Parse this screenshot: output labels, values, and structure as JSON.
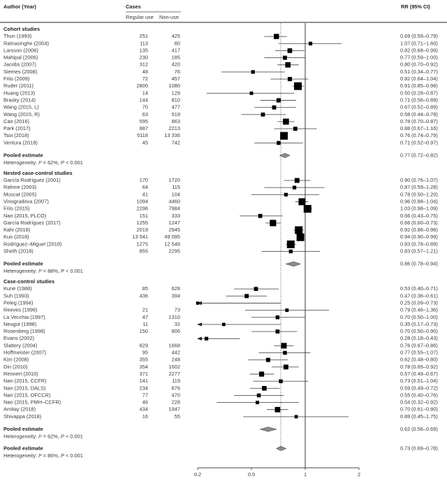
{
  "header": {
    "author_col": "Author (Year)",
    "cases_col": "Cases",
    "regular_col": "Regular use",
    "nonuse_col": "Non-use",
    "rr_col": "RR (95% CI)"
  },
  "chart_data": {
    "type": "forest",
    "x_scale": "log",
    "x_tick_labels": [
      "0.2",
      "0.5",
      "1",
      "2"
    ],
    "reference_line": 1,
    "pooled_reference_line": 0.73,
    "colors": {
      "square": "#000000",
      "ci_line": "#555555",
      "diamond": "#8c8c8c",
      "text": "#3a3a3a"
    },
    "sections": [
      {
        "title": "Cohort studies",
        "studies": [
          {
            "author": "Thun (1993)",
            "regular": "251",
            "nonuse": "425",
            "rr": 0.69,
            "lo": 0.59,
            "hi": 0.79
          },
          {
            "author": "Ratnasinghe (2004)",
            "regular": "113",
            "nonuse": "80",
            "rr": 1.07,
            "lo": 0.71,
            "hi": 1.6
          },
          {
            "author": "Larsson (2006)",
            "regular": "135",
            "nonuse": "417",
            "rr": 0.82,
            "lo": 0.68,
            "hi": 0.99
          },
          {
            "author": "Mahipal (2006)",
            "regular": "230",
            "nonuse": "185",
            "rr": 0.77,
            "lo": 0.59,
            "hi": 1.0
          },
          {
            "author": "Jacobs (2007)",
            "regular": "312",
            "nonuse": "420",
            "rr": 0.8,
            "lo": 0.7,
            "hi": 0.92
          },
          {
            "author": "Siemes (2008)",
            "regular": "48",
            "nonuse": "76",
            "rr": 0.51,
            "lo": 0.34,
            "hi": 0.77
          },
          {
            "author": "Friis (2009)",
            "regular": "72",
            "nonuse": "457",
            "rr": 0.82,
            "lo": 0.64,
            "hi": 1.04
          },
          {
            "author": "Ruder (2011)",
            "regular": "2800",
            "nonuse": "1080",
            "rr": 0.91,
            "lo": 0.85,
            "hi": 0.98
          },
          {
            "author": "Huang (2013)",
            "regular": "14",
            "nonuse": "129",
            "rr": 0.5,
            "lo": 0.28,
            "hi": 0.87
          },
          {
            "author": "Brasky (2014)",
            "regular": "144",
            "nonuse": "810",
            "rr": 0.71,
            "lo": 0.56,
            "hi": 0.89
          },
          {
            "author": "Wang (2015, L)",
            "regular": "70",
            "nonuse": "477",
            "rr": 0.67,
            "lo": 0.52,
            "hi": 0.89
          },
          {
            "author": "Wang (2015, R)",
            "regular": "63",
            "nonuse": "519",
            "rr": 0.58,
            "lo": 0.44,
            "hi": 0.78
          },
          {
            "author": "Cao (2016)",
            "regular": "595",
            "nonuse": "863",
            "rr": 0.78,
            "lo": 0.7,
            "hi": 0.87
          },
          {
            "author": "Park (2017)",
            "regular": "887",
            "nonuse": "2213",
            "rr": 0.88,
            "lo": 0.67,
            "hi": 1.16
          },
          {
            "author": "Tsoi (2018)",
            "regular": "5118",
            "nonuse": "13 336",
            "rr": 0.76,
            "lo": 0.74,
            "hi": 0.79
          },
          {
            "author": "Ventura (2018)",
            "regular": "45",
            "nonuse": "742",
            "rr": 0.71,
            "lo": 0.52,
            "hi": 0.97
          }
        ],
        "pooled": {
          "label": "Pooled estimate",
          "heterogeneity": "Heterogeneity: I² = 62%, P < 0.001",
          "rr": 0.77,
          "lo": 0.72,
          "hi": 0.82
        }
      },
      {
        "title": "Nested case-control studies",
        "studies": [
          {
            "author": "García Rodríguez (2001)",
            "regular": "170",
            "nonuse": "1720",
            "rr": 0.9,
            "lo": 0.76,
            "hi": 1.07
          },
          {
            "author": "Rahme (2003)",
            "regular": "64",
            "nonuse": "115",
            "rr": 0.87,
            "lo": 0.59,
            "hi": 1.28
          },
          {
            "author": "Muscat (2005)",
            "regular": "41",
            "nonuse": "104",
            "rr": 0.78,
            "lo": 0.5,
            "hi": 1.2
          },
          {
            "author": "Vinogradova (2007)",
            "regular": "1094",
            "nonuse": "4460",
            "rr": 0.96,
            "lo": 0.88,
            "hi": 1.04
          },
          {
            "author": "Friis (2015)",
            "regular": "2296",
            "nonuse": "7984",
            "rr": 1.03,
            "lo": 0.98,
            "hi": 1.09
          },
          {
            "author": "Nan (2015, PLCO)",
            "regular": "151",
            "nonuse": "333",
            "rr": 0.56,
            "lo": 0.43,
            "hi": 0.75
          },
          {
            "author": "García Rodríguez (2017)",
            "regular": "1255",
            "nonuse": "1247",
            "rr": 0.66,
            "lo": 0.6,
            "hi": 0.73
          },
          {
            "author": "Kahi (2018)",
            "regular": "2019",
            "nonuse": "2945",
            "rr": 0.92,
            "lo": 0.86,
            "hi": 0.98
          },
          {
            "author": "Kuo (2018)",
            "regular": "13 541",
            "nonuse": "49 095",
            "rr": 0.94,
            "lo": 0.9,
            "hi": 0.99
          },
          {
            "author": "Rodríguez–Miguel (2018)",
            "regular": "1275",
            "nonuse": "12 548",
            "rr": 0.83,
            "lo": 0.78,
            "hi": 0.89
          },
          {
            "author": "Sheth (2018)",
            "regular": "855",
            "nonuse": "2295",
            "rr": 0.83,
            "lo": 0.57,
            "hi": 1.21
          }
        ],
        "pooled": {
          "label": "Pooled estimate",
          "heterogeneity": "Heterogeneity: I² = 88%, P < 0.001",
          "rr": 0.86,
          "lo": 0.78,
          "hi": 0.94
        }
      },
      {
        "title": "Case-control studies",
        "studies": [
          {
            "author": "Kune (1988)",
            "regular": "85",
            "nonuse": "628",
            "rr": 0.53,
            "lo": 0.4,
            "hi": 0.71
          },
          {
            "author": "Suh (1993)",
            "regular": "436",
            "nonuse": "394",
            "rr": 0.47,
            "lo": 0.36,
            "hi": 0.61
          },
          {
            "author": "Peleg (1994)",
            "regular": "",
            "nonuse": "",
            "rr": 0.25,
            "lo": 0.09,
            "hi": 0.73
          },
          {
            "author": "Reeves (1996)",
            "regular": "21",
            "nonuse": "73",
            "rr": 0.79,
            "lo": 0.46,
            "hi": 1.36
          },
          {
            "author": "La Vecchia (1997)",
            "regular": "47",
            "nonuse": "1310",
            "rr": 0.7,
            "lo": 0.5,
            "hi": 1.0
          },
          {
            "author": "Neugut (1998)",
            "regular": "11",
            "nonuse": "32",
            "rr": 0.35,
            "lo": 0.17,
            "hi": 0.73
          },
          {
            "author": "Rosenberg (1998)",
            "regular": "150",
            "nonuse": "806",
            "rr": 0.7,
            "lo": 0.5,
            "hi": 0.9
          },
          {
            "author": "Evans (2002)",
            "regular": "",
            "nonuse": "",
            "rr": 0.28,
            "lo": 0.18,
            "hi": 0.43
          },
          {
            "author": "Slattery (2004)",
            "regular": "629",
            "nonuse": "1668",
            "rr": 0.76,
            "lo": 0.67,
            "hi": 0.86
          },
          {
            "author": "Hoffmeister (2007)",
            "regular": "95",
            "nonuse": "442",
            "rr": 0.77,
            "lo": 0.55,
            "hi": 1.07
          },
          {
            "author": "Kim (2008)",
            "regular": "355",
            "nonuse": "248",
            "rr": 0.62,
            "lo": 0.48,
            "hi": 0.8
          },
          {
            "author": "Din (2010)",
            "regular": "354",
            "nonuse": "1602",
            "rr": 0.78,
            "lo": 0.65,
            "hi": 0.92
          },
          {
            "author": "Rennert (2010)",
            "regular": "371",
            "nonuse": "2277",
            "rr": 0.57,
            "lo": 0.49,
            "hi": 0.67
          },
          {
            "author": "Nan (2015, CCFR)",
            "regular": "141",
            "nonuse": "119",
            "rr": 0.73,
            "lo": 0.51,
            "hi": 1.04
          },
          {
            "author": "Nan (2015, DALS)",
            "regular": "234",
            "nonuse": "876",
            "rr": 0.59,
            "lo": 0.49,
            "hi": 0.72
          },
          {
            "author": "Nan (2015, OFCCR)",
            "regular": "77",
            "nonuse": "470",
            "rr": 0.55,
            "lo": 0.4,
            "hi": 0.76
          },
          {
            "author": "Nan (2015, PMH–CCFR)",
            "regular": "46",
            "nonuse": "228",
            "rr": 0.54,
            "lo": 0.32,
            "hi": 0.92
          },
          {
            "author": "Amitay (2018)",
            "regular": "434",
            "nonuse": "1947",
            "rr": 0.7,
            "lo": 0.61,
            "hi": 0.8
          },
          {
            "author": "Shivappa (2018)",
            "regular": "16",
            "nonuse": "55",
            "rr": 0.89,
            "lo": 0.45,
            "hi": 1.75
          }
        ],
        "pooled": {
          "label": "Pooled estimate",
          "heterogeneity": "Heterogeneity: I² = 62%, P < 0.001",
          "rr": 0.62,
          "lo": 0.56,
          "hi": 0.69
        }
      }
    ],
    "overall": {
      "label": "Pooled estimate",
      "heterogeneity": "Heterogeneity: I² = 86%, P < 0.001",
      "rr": 0.73,
      "lo": 0.69,
      "hi": 0.78
    }
  }
}
